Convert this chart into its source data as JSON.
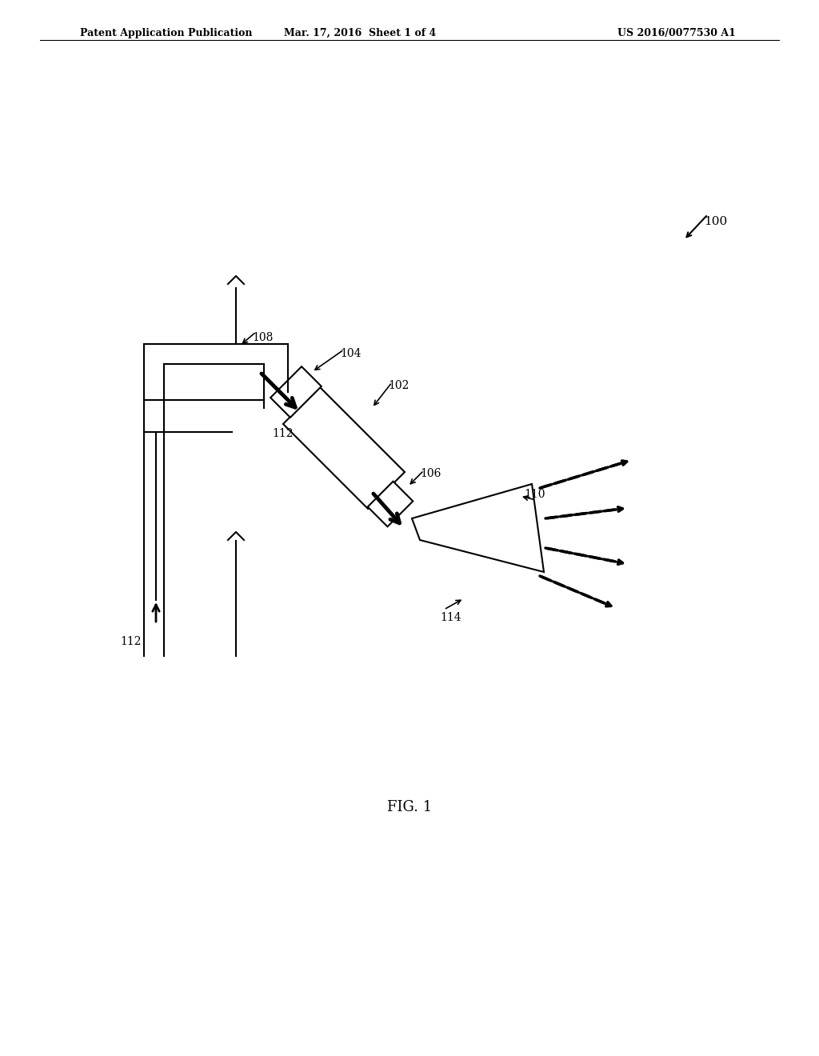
{
  "title": "",
  "header_left": "Patent Application Publication",
  "header_mid": "Mar. 17, 2016  Sheet 1 of 4",
  "header_right": "US 2016/0077530 A1",
  "fig_label": "FIG. 1",
  "ref_100": "100",
  "ref_102": "102",
  "ref_104": "104",
  "ref_106": "106",
  "ref_108": "108",
  "ref_110": "110",
  "ref_112": "112",
  "ref_114": "114",
  "bg_color": "#ffffff",
  "line_color": "#000000",
  "linewidth": 1.5,
  "arrow_linewidth": 2.0
}
